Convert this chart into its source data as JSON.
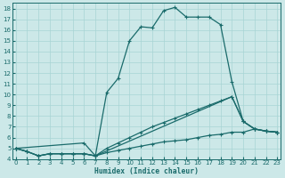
{
  "xlabel": "Humidex (Indice chaleur)",
  "xlim": [
    -0.3,
    23.3
  ],
  "ylim": [
    4,
    18.5
  ],
  "xticks": [
    0,
    1,
    2,
    3,
    4,
    5,
    6,
    7,
    8,
    9,
    10,
    11,
    12,
    13,
    14,
    15,
    16,
    17,
    18,
    19,
    20,
    21,
    22,
    23
  ],
  "yticks": [
    4,
    5,
    6,
    7,
    8,
    9,
    10,
    11,
    12,
    13,
    14,
    15,
    16,
    17,
    18
  ],
  "bg_color": "#cce8e8",
  "line_color": "#1a6b6b",
  "grid_color": "#a8d4d4",
  "curve1_x": [
    0,
    1,
    2,
    3,
    4,
    5,
    6,
    7,
    8,
    9,
    10,
    11,
    12,
    13,
    14,
    15,
    16,
    17,
    18,
    19,
    20,
    21,
    22,
    23
  ],
  "curve1_y": [
    5.0,
    4.7,
    4.3,
    4.5,
    4.5,
    4.5,
    4.5,
    4.3,
    10.2,
    11.5,
    15.0,
    16.3,
    16.2,
    17.8,
    18.1,
    17.2,
    17.2,
    17.2,
    16.5,
    11.2,
    7.5,
    6.8,
    6.6,
    6.5
  ],
  "curve2_x": [
    0,
    1,
    2,
    3,
    4,
    5,
    6,
    7,
    8,
    9,
    10,
    11,
    12,
    13,
    14,
    15,
    16,
    17,
    18,
    19,
    20,
    21,
    22,
    23
  ],
  "curve2_y": [
    5.0,
    4.7,
    4.3,
    4.5,
    4.5,
    4.5,
    4.5,
    4.3,
    5.0,
    5.5,
    6.0,
    6.5,
    7.0,
    7.4,
    7.8,
    8.2,
    8.6,
    9.0,
    9.4,
    9.8,
    7.5,
    6.8,
    6.6,
    6.5
  ],
  "curve3_x": [
    0,
    1,
    2,
    3,
    4,
    5,
    6,
    7,
    8,
    9,
    10,
    11,
    12,
    13,
    14,
    15,
    16,
    17,
    18,
    19,
    20,
    21,
    22,
    23
  ],
  "curve3_y": [
    5.0,
    4.7,
    4.3,
    4.5,
    4.5,
    4.5,
    4.5,
    4.3,
    4.6,
    4.8,
    5.0,
    5.2,
    5.4,
    5.6,
    5.7,
    5.8,
    6.0,
    6.2,
    6.3,
    6.5,
    6.5,
    6.8,
    6.6,
    6.5
  ],
  "curve4_x": [
    0,
    6,
    7,
    19,
    20,
    21,
    22,
    23
  ],
  "curve4_y": [
    5.0,
    5.5,
    4.3,
    9.8,
    7.5,
    6.8,
    6.6,
    6.5
  ],
  "lw": 0.9,
  "ms": 3.0
}
